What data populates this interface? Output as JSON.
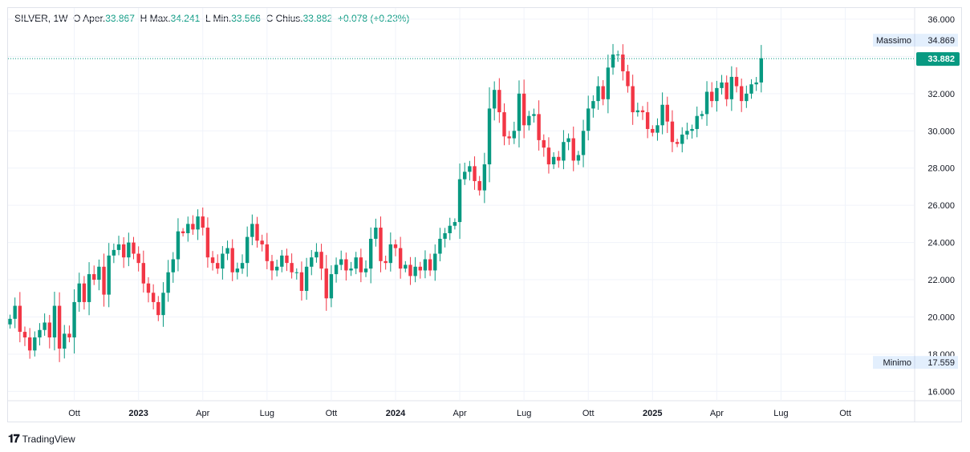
{
  "header": {
    "symbol": "SILVER, 1W",
    "open_label": "O",
    "open_word": "Aper.",
    "open": "33.867",
    "high_label": "H",
    "high_word": "Max.",
    "high": "34.241",
    "low_label": "L",
    "low_word": "Min.",
    "low": "33.566",
    "close_label": "C",
    "close_word": "Chius.",
    "close": "33.882",
    "change": "+0.078",
    "change_pct": "(+0.23%)"
  },
  "footer": {
    "brand": "TradingView"
  },
  "colors": {
    "up": "#089981",
    "down": "#f23645",
    "grid": "#f0f3fa",
    "badge_bg": "#e3effd"
  },
  "chart_data": {
    "type": "candlestick",
    "title": "SILVER, 1W",
    "ylim": [
      15.5,
      36.6
    ],
    "y_ticks": [
      "36.000",
      "34.000",
      "32.000",
      "30.000",
      "28.000",
      "26.000",
      "24.000",
      "22.000",
      "20.000",
      "18.000",
      "16.000"
    ],
    "x_labels": [
      "Ott",
      "2023",
      "Apr",
      "Lug",
      "Ott",
      "2024",
      "Apr",
      "Lug",
      "Ott",
      "2025",
      "Apr",
      "Lug",
      "Ott"
    ],
    "bold_x_labels": [
      "2023",
      "2024",
      "2025"
    ],
    "x_label_weeks": [
      13,
      26,
      39,
      52,
      65,
      78,
      91,
      104,
      117,
      130,
      143,
      156,
      169
    ],
    "current_price": {
      "value": 33.882,
      "label": "33.882"
    },
    "max_marker": {
      "label": "Massimo",
      "value": 34.869,
      "value_label": "34.869"
    },
    "min_marker": {
      "label": "Minimo",
      "value": 17.559,
      "value_label": "17.559"
    },
    "closes": [
      19.9,
      20.6,
      19.2,
      18.9,
      18.2,
      18.9,
      19.3,
      19.7,
      18.9,
      20.6,
      18.3,
      19.1,
      18.9,
      20.8,
      21.8,
      20.8,
      22.3,
      22.0,
      22.7,
      21.2,
      23.3,
      23.6,
      23.9,
      23.2,
      24.0,
      23.4,
      22.9,
      21.8,
      21.3,
      20.8,
      20.1,
      21.3,
      22.4,
      23.1,
      24.6,
      24.5,
      25.0,
      24.7,
      25.4,
      24.8,
      23.2,
      22.9,
      22.6,
      23.4,
      23.7,
      22.4,
      22.6,
      22.9,
      24.3,
      25.0,
      24.1,
      23.9,
      23.0,
      22.5,
      22.7,
      23.3,
      22.9,
      22.4,
      22.4,
      21.4,
      22.7,
      23.2,
      23.5,
      22.6,
      21.0,
      22.3,
      22.8,
      23.1,
      22.5,
      22.6,
      23.2,
      22.4,
      22.6,
      24.2,
      24.8,
      23.0,
      22.9,
      23.9,
      23.7,
      22.6,
      22.8,
      22.2,
      22.7,
      22.5,
      23.1,
      22.5,
      23.4,
      24.2,
      24.5,
      24.9,
      25.1,
      27.4,
      27.8,
      28.1,
      27.3,
      26.8,
      28.2,
      31.2,
      32.2,
      31.0,
      29.7,
      29.6,
      30.0,
      32.0,
      30.3,
      30.8,
      30.9,
      29.5,
      29.1,
      28.2,
      28.6,
      28.4,
      29.4,
      29.6,
      28.4,
      28.7,
      30.0,
      31.2,
      31.6,
      32.4,
      31.7,
      33.4,
      34.1,
      34.1,
      33.2,
      32.4,
      31.0,
      31.1,
      31.0,
      30.1,
      29.9,
      30.3,
      31.4,
      30.5,
      29.4,
      29.3,
      29.8,
      30.0,
      30.1,
      30.8,
      30.9,
      32.1,
      31.6,
      32.3,
      32.6,
      31.7,
      32.9,
      32.4,
      31.6,
      32.0,
      32.5,
      32.6,
      33.9
    ]
  }
}
